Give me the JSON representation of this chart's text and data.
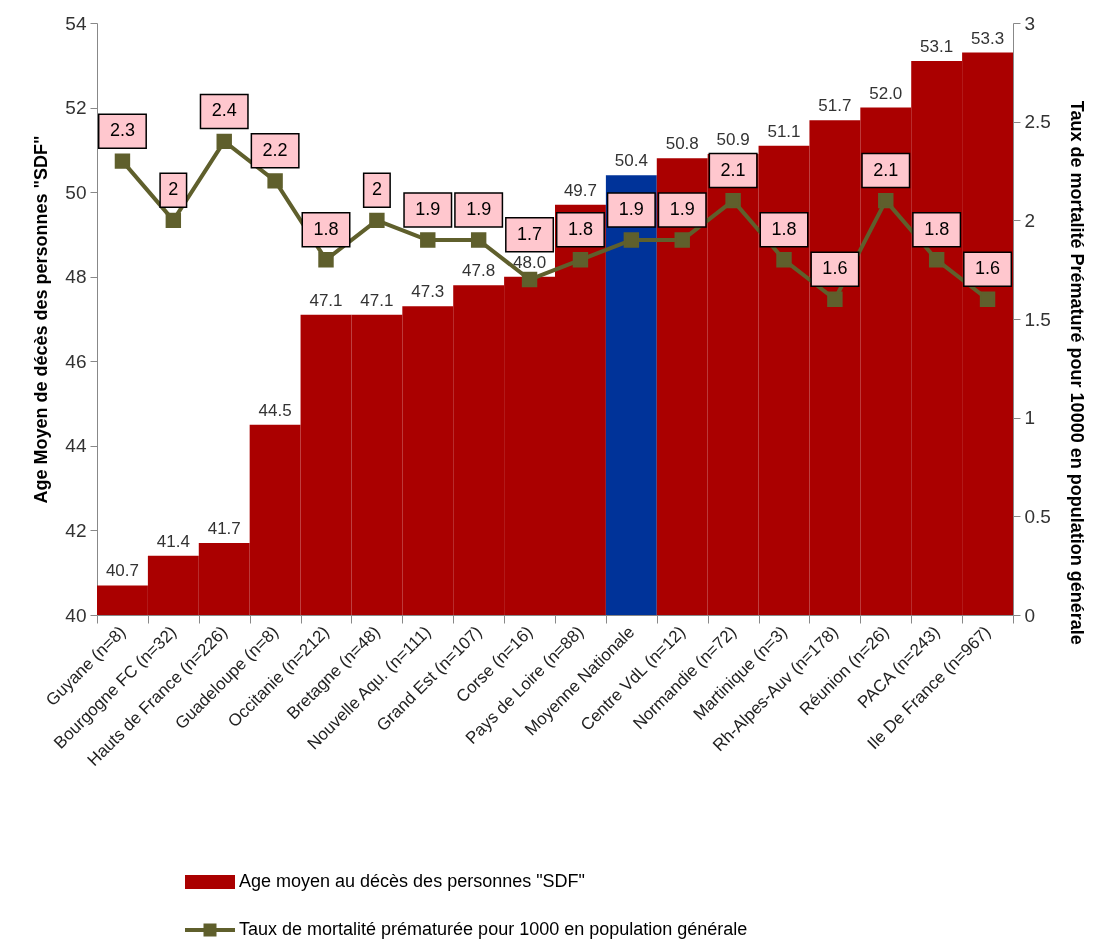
{
  "chart_data": {
    "type": "bar",
    "categories": [
      "Guyane (n=8)",
      "Bourgogne FC (n=32)",
      "Hauts de France (n=226)",
      "Guadeloupe (n=8)",
      "Occitanie (n=212)",
      "Bretagne (n=48)",
      "Nouvelle Aqu. (n=111)",
      "Grand Est (n=107)",
      "Corse (n=16)",
      "Pays de Loire (n=88)",
      "Moyenne Nationale",
      "Centre VdL (n=12)",
      "Normandie (n=72)",
      "Martinique (n=3)",
      "Rh-Alpes-Auv (n=178)",
      "Réunion (n=26)",
      "PACA (n=243)",
      "Ile De France (n=967)"
    ],
    "ylabel": "Age Moyen de décès des personnes \"SDF\"",
    "y2label": "Taux de mortalité Prématuré pour 10000 en population générale",
    "ylim": [
      40,
      54
    ],
    "yticks": [
      40,
      42,
      44,
      46,
      48,
      50,
      52,
      54
    ],
    "y2lim": [
      0,
      3
    ],
    "y2ticks": [
      0,
      0.5,
      1,
      1.5,
      2,
      2.5,
      3
    ],
    "legend": "bottom",
    "marker": "square",
    "line_style": "solid",
    "series": [
      {
        "name": "Age moyen au décès des personnes \"SDF\"",
        "color": "#aa0000",
        "colors": [
          "#aa0000",
          "#aa0000",
          "#aa0000",
          "#aa0000",
          "#aa0000",
          "#aa0000",
          "#aa0000",
          "#aa0000",
          "#aa0000",
          "#aa0000",
          "#003399",
          "#aa0000",
          "#aa0000",
          "#aa0000",
          "#aa0000",
          "#aa0000",
          "#aa0000",
          "#aa0000"
        ],
        "values": [
          40.7,
          41.4,
          41.7,
          44.5,
          47.1,
          47.1,
          47.3,
          47.8,
          48.0,
          49.7,
          50.4,
          50.8,
          50.9,
          51.1,
          51.7,
          52.0,
          53.1,
          53.3
        ],
        "value_labels": [
          "40.7",
          "41.4",
          "41.7",
          "44.5",
          "47.1",
          "47.1",
          "47.3",
          "47.8",
          "48.0",
          "49.7",
          "50.4",
          "50.8",
          "50.9",
          "51.1",
          "51.7",
          "52.0",
          "53.1",
          "53.3"
        ]
      },
      {
        "name": "Taux de mortalité prématurée pour 1000 en population générale",
        "type": "line",
        "axis": "y2",
        "color": "#5f5f2c",
        "values": [
          2.3,
          2,
          2.4,
          2.2,
          1.8,
          2,
          1.9,
          1.9,
          1.7,
          1.8,
          1.9,
          1.9,
          2.1,
          1.8,
          1.6,
          2.1,
          1.8,
          1.6
        ],
        "value_labels": [
          "2.3",
          "2",
          "2.4",
          "2.2",
          "1.8",
          "2",
          "1.9",
          "1.9",
          "1.7",
          "1.8",
          "1.9",
          "1.9",
          "2.1",
          "1.8",
          "1.6",
          "2.1",
          "1.8",
          "1.6"
        ]
      }
    ]
  }
}
